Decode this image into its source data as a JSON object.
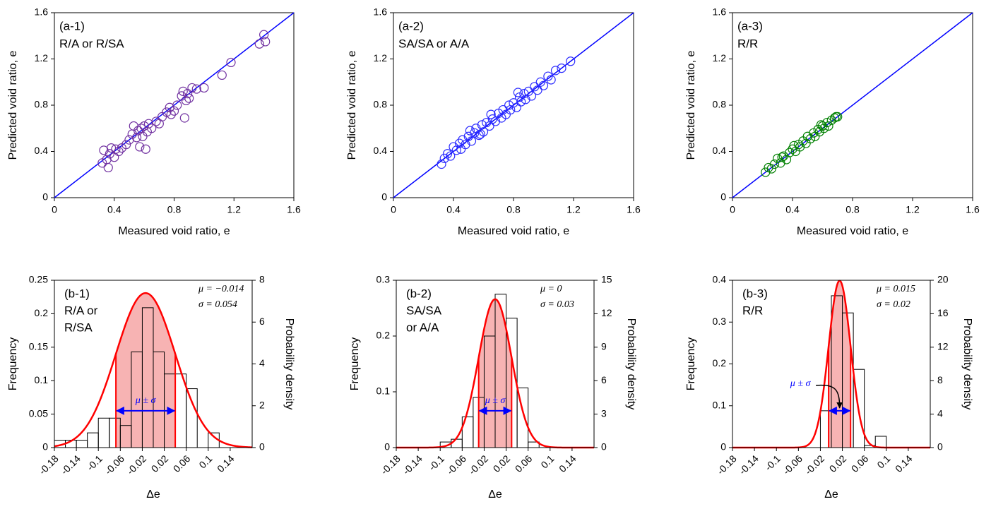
{
  "chart_data": [
    {
      "type": "scatter",
      "annotation": [
        "(a-1)",
        "R/A or R/SA"
      ],
      "xlabel": "Measured void ratio, e",
      "ylabel": "Predicted void ratio, e",
      "color": "#7030a0",
      "line_color": "#0000ff",
      "xlim": [
        0,
        1.6
      ],
      "ylim": [
        0,
        1.6
      ],
      "xticks": [
        0,
        0.4,
        0.8,
        1.2,
        1.6
      ],
      "yticks": [
        0,
        0.4,
        0.8,
        1.2,
        1.6
      ],
      "x": [
        0.32,
        0.33,
        0.35,
        0.36,
        0.37,
        0.38,
        0.4,
        0.41,
        0.43,
        0.45,
        0.48,
        0.5,
        0.52,
        0.53,
        0.55,
        0.56,
        0.57,
        0.58,
        0.59,
        0.6,
        0.61,
        0.62,
        0.63,
        0.65,
        0.68,
        0.7,
        0.72,
        0.75,
        0.77,
        0.78,
        0.8,
        0.82,
        0.85,
        0.86,
        0.87,
        0.88,
        0.89,
        0.9,
        0.92,
        0.95,
        1.0,
        1.12,
        1.18,
        1.37,
        1.4,
        1.41
      ],
      "values": [
        0.3,
        0.41,
        0.33,
        0.26,
        0.38,
        0.43,
        0.35,
        0.42,
        0.4,
        0.43,
        0.46,
        0.5,
        0.55,
        0.62,
        0.52,
        0.58,
        0.44,
        0.6,
        0.53,
        0.62,
        0.42,
        0.57,
        0.64,
        0.6,
        0.66,
        0.64,
        0.7,
        0.74,
        0.78,
        0.72,
        0.75,
        0.8,
        0.88,
        0.92,
        0.69,
        0.84,
        0.9,
        0.86,
        0.95,
        0.94,
        0.95,
        1.06,
        1.17,
        1.33,
        1.41,
        1.35
      ]
    },
    {
      "type": "scatter",
      "annotation": [
        "(a-2)",
        "SA/SA or A/A"
      ],
      "xlabel": "Measured void ratio, e",
      "ylabel": "Predicted void ratio, e",
      "color": "#2a2aff",
      "line_color": "#0000ff",
      "xlim": [
        0,
        1.6
      ],
      "ylim": [
        0,
        1.6
      ],
      "xticks": [
        0,
        0.4,
        0.8,
        1.2,
        1.6
      ],
      "yticks": [
        0,
        0.4,
        0.8,
        1.2,
        1.6
      ],
      "x": [
        0.32,
        0.34,
        0.36,
        0.38,
        0.4,
        0.42,
        0.44,
        0.46,
        0.48,
        0.5,
        0.52,
        0.54,
        0.55,
        0.57,
        0.59,
        0.6,
        0.62,
        0.64,
        0.66,
        0.68,
        0.7,
        0.72,
        0.73,
        0.75,
        0.77,
        0.78,
        0.8,
        0.82,
        0.84,
        0.85,
        0.87,
        0.88,
        0.9,
        0.92,
        0.94,
        0.96,
        0.98,
        1.0,
        1.03,
        1.05,
        1.08,
        1.12,
        1.18,
        0.45,
        0.58,
        0.65,
        0.83,
        0.51
      ],
      "values": [
        0.29,
        0.34,
        0.38,
        0.36,
        0.44,
        0.41,
        0.47,
        0.5,
        0.46,
        0.53,
        0.49,
        0.56,
        0.6,
        0.54,
        0.63,
        0.57,
        0.65,
        0.62,
        0.68,
        0.66,
        0.73,
        0.69,
        0.76,
        0.72,
        0.8,
        0.76,
        0.82,
        0.78,
        0.87,
        0.83,
        0.9,
        0.85,
        0.92,
        0.88,
        0.96,
        0.93,
        1.0,
        0.97,
        1.05,
        1.02,
        1.1,
        1.12,
        1.18,
        0.42,
        0.55,
        0.72,
        0.91,
        0.58
      ]
    },
    {
      "type": "scatter",
      "annotation": [
        "(a-3)",
        "R/R"
      ],
      "xlabel": "Measured void ratio, e",
      "ylabel": "Predicted void ratio, e",
      "color": "#008000",
      "line_color": "#0000ff",
      "xlim": [
        0,
        1.6
      ],
      "ylim": [
        0,
        1.6
      ],
      "xticks": [
        0,
        0.4,
        0.8,
        1.2,
        1.6
      ],
      "yticks": [
        0,
        0.4,
        0.8,
        1.2,
        1.6
      ],
      "x": [
        0.22,
        0.24,
        0.26,
        0.28,
        0.3,
        0.32,
        0.34,
        0.36,
        0.38,
        0.4,
        0.42,
        0.44,
        0.45,
        0.47,
        0.49,
        0.5,
        0.52,
        0.54,
        0.55,
        0.57,
        0.58,
        0.6,
        0.61,
        0.63,
        0.64,
        0.66,
        0.68,
        0.7,
        0.69,
        0.33,
        0.41,
        0.59
      ],
      "values": [
        0.22,
        0.26,
        0.25,
        0.29,
        0.34,
        0.3,
        0.36,
        0.33,
        0.39,
        0.42,
        0.4,
        0.46,
        0.44,
        0.49,
        0.47,
        0.53,
        0.51,
        0.56,
        0.53,
        0.59,
        0.57,
        0.62,
        0.6,
        0.65,
        0.62,
        0.67,
        0.69,
        0.7,
        0.7,
        0.35,
        0.45,
        0.63
      ]
    },
    {
      "type": "histogram",
      "annotation": [
        "(b-1)",
        "R/A or",
        "R/SA"
      ],
      "xlabel": "Δe",
      "ylabel": "Frequency",
      "y2label": "Probability density",
      "mu": -0.014,
      "sigma": 0.054,
      "mu_label": "μ = −0.014",
      "sigma_label": "σ = 0.054",
      "range_label": "μ ± σ",
      "curve_color": "#ff0000",
      "fill_color": "#f7b3b3",
      "arrow_color": "#0000ff",
      "bins": [
        -0.18,
        -0.16,
        -0.14,
        -0.12,
        -0.1,
        -0.08,
        -0.06,
        -0.04,
        -0.02,
        0,
        0.02,
        0.04,
        0.06,
        0.08,
        0.1,
        0.12,
        0.14,
        0.16,
        0.18
      ],
      "values": [
        0.011,
        0.011,
        0.011,
        0.022,
        0.044,
        0.044,
        0.033,
        0.143,
        0.209,
        0.143,
        0.11,
        0.11,
        0.088,
        0,
        0.022,
        0,
        0,
        0
      ],
      "xlim": [
        -0.18,
        0.18
      ],
      "xticks": [
        -0.18,
        -0.14,
        -0.1,
        -0.06,
        -0.02,
        0.02,
        0.06,
        0.1,
        0.14
      ],
      "ylim": [
        0,
        0.25
      ],
      "yticks": [
        0,
        0.05,
        0.1,
        0.15,
        0.2,
        0.25
      ],
      "y2lim": [
        0,
        8
      ],
      "y2ticks": [
        0,
        2,
        4,
        6,
        8
      ]
    },
    {
      "type": "histogram",
      "annotation": [
        "(b-2)",
        "SA/SA",
        "or A/A"
      ],
      "xlabel": "Δe",
      "ylabel": "Frequency",
      "y2label": "Probability density",
      "mu": 0,
      "sigma": 0.03,
      "mu_label": "μ = 0",
      "sigma_label": "σ = 0.03",
      "range_label": "μ ± σ",
      "curve_color": "#ff0000",
      "fill_color": "#f7b3b3",
      "arrow_color": "#0000ff",
      "bins": [
        -0.18,
        -0.16,
        -0.14,
        -0.12,
        -0.1,
        -0.08,
        -0.06,
        -0.04,
        -0.02,
        0,
        0.02,
        0.04,
        0.06,
        0.08,
        0.1,
        0.12,
        0.14,
        0.16,
        0.18
      ],
      "values": [
        0,
        0,
        0,
        0,
        0.01,
        0.015,
        0.055,
        0.09,
        0.2,
        0.275,
        0.232,
        0.107,
        0.01,
        0,
        0,
        0,
        0,
        0
      ],
      "xlim": [
        -0.18,
        0.18
      ],
      "xticks": [
        -0.18,
        -0.14,
        -0.1,
        -0.06,
        -0.02,
        0.02,
        0.06,
        0.1,
        0.14
      ],
      "ylim": [
        0,
        0.3
      ],
      "yticks": [
        0,
        0.1,
        0.2,
        0.3
      ],
      "y2lim": [
        0,
        15
      ],
      "y2ticks": [
        0,
        3,
        6,
        9,
        12,
        15
      ]
    },
    {
      "type": "histogram",
      "annotation": [
        "(b-3)",
        "R/R"
      ],
      "xlabel": "Δe",
      "ylabel": "Frequency",
      "y2label": "Probability density",
      "mu": 0.015,
      "sigma": 0.02,
      "mu_label": "μ = 0.015",
      "sigma_label": "σ = 0.02",
      "range_label": "μ ± σ",
      "curve_color": "#ff0000",
      "fill_color": "#f7b3b3",
      "arrow_color": "#0000ff",
      "bins": [
        -0.18,
        -0.16,
        -0.14,
        -0.12,
        -0.1,
        -0.08,
        -0.06,
        -0.04,
        -0.02,
        0,
        0.02,
        0.04,
        0.06,
        0.08,
        0.1,
        0.12,
        0.14,
        0.16,
        0.18
      ],
      "values": [
        0,
        0,
        0,
        0,
        0,
        0,
        0,
        0,
        0.088,
        0.363,
        0.322,
        0.187,
        0.005,
        0.027,
        0,
        0,
        0,
        0
      ],
      "xlim": [
        -0.18,
        0.18
      ],
      "xticks": [
        -0.18,
        -0.14,
        -0.1,
        -0.06,
        -0.02,
        0.02,
        0.06,
        0.1,
        0.14
      ],
      "ylim": [
        0,
        0.4
      ],
      "yticks": [
        0,
        0.1,
        0.2,
        0.3,
        0.4
      ],
      "y2lim": [
        0,
        20
      ],
      "y2ticks": [
        0,
        4,
        8,
        12,
        16,
        20
      ]
    }
  ]
}
